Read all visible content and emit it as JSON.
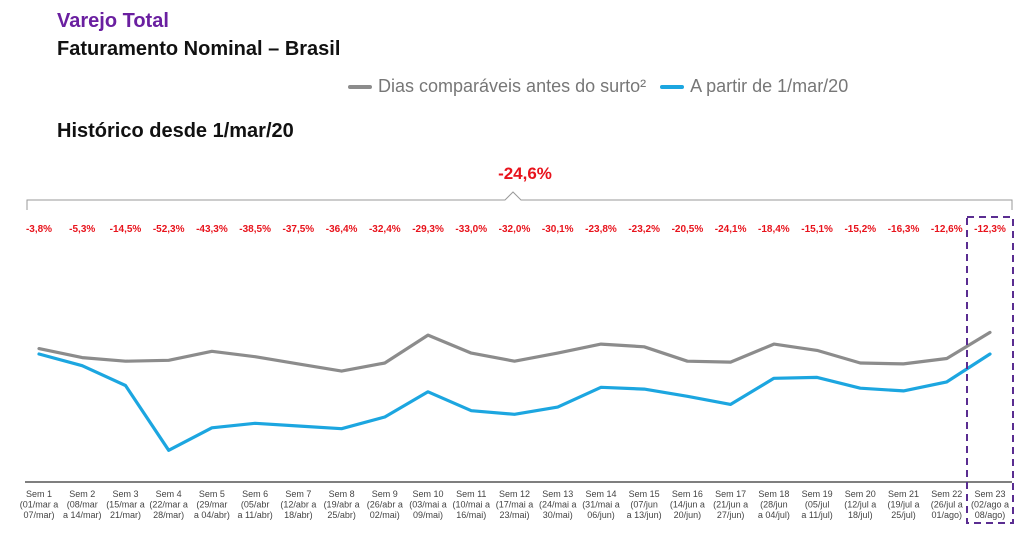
{
  "header": {
    "title": "Varejo Total",
    "subtitle": "Faturamento Nominal – Brasil",
    "section": "Histórico desde 1/mar/20"
  },
  "legend": {
    "items": [
      {
        "label": "Dias comparáveis antes do surto²",
        "color": "#8c8c8c"
      },
      {
        "label": "A partir de 1/mar/20",
        "color": "#1ca6e0"
      }
    ]
  },
  "colors": {
    "accent": "#6a1fa0",
    "negative": "#e8131c",
    "highlight_box": "#5a2d91"
  },
  "chart_data": {
    "type": "line",
    "total_change": "-24,6%",
    "categories": [
      [
        "Sem 1",
        "(01/mar a",
        "07/mar)"
      ],
      [
        "Sem 2",
        "(08/mar",
        "a 14/mar)"
      ],
      [
        "Sem 3",
        "(15/mar a",
        "21/mar)"
      ],
      [
        "Sem 4",
        "(22/mar a",
        "28/mar)"
      ],
      [
        "Sem 5",
        "(29/mar",
        "a 04/abr)"
      ],
      [
        "Sem 6",
        "(05/abr",
        "a 11/abr)"
      ],
      [
        "Sem 7",
        "(12/abr a",
        "18/abr)"
      ],
      [
        "Sem 8",
        "(19/abr a",
        "25/abr)"
      ],
      [
        "Sem 9",
        "(26/abr a",
        "02/mai)"
      ],
      [
        "Sem 10",
        "(03/mai a",
        "09/mai)"
      ],
      [
        "Sem 11",
        "(10/mai a",
        "16/mai)"
      ],
      [
        "Sem 12",
        "(17/mai a",
        "23/mai)"
      ],
      [
        "Sem 13",
        "(24/mai a",
        "30/mai)"
      ],
      [
        "Sem 14",
        "(31/mai a",
        "06/jun)"
      ],
      [
        "Sem 15",
        "(07/jun",
        "a 13/jun)"
      ],
      [
        "Sem 16",
        "(14/jun a",
        "20/jun)"
      ],
      [
        "Sem 17",
        "(21/jun a",
        "27/jun)"
      ],
      [
        "Sem 18",
        "(28/jun",
        "a 04/jul)"
      ],
      [
        "Sem 19",
        "(05/jul",
        "a 11/jul)"
      ],
      [
        "Sem 20",
        "(12/jul a",
        "18/jul)"
      ],
      [
        "Sem 21",
        "(19/jul a",
        "25/jul)"
      ],
      [
        "Sem 22",
        "(26/jul a",
        "01/ago)"
      ],
      [
        "Sem 23",
        "(02/ago a",
        "08/ago)"
      ]
    ],
    "variations": [
      "-3,8%",
      "-5,3%",
      "-14,5%",
      "-52,3%",
      "-43,3%",
      "-38,5%",
      "-37,5%",
      "-36,4%",
      "-32,4%",
      "-29,3%",
      "-33,0%",
      "-32,0%",
      "-30,1%",
      "-23,8%",
      "-23,2%",
      "-20,5%",
      "-24,1%",
      "-18,4%",
      "-15,1%",
      "-15,2%",
      "-16,3%",
      "-12,6%",
      "-12,3%"
    ],
    "ylim": [
      0,
      100
    ],
    "series": [
      {
        "name": "Dias comparáveis antes do surto²",
        "color": "#8c8c8c",
        "values": [
          73,
          68,
          66,
          66.5,
          71.5,
          68.5,
          64.5,
          60.5,
          65,
          80.5,
          70.5,
          66,
          70.5,
          75.5,
          74,
          66,
          65.5,
          75.5,
          72,
          65,
          64.5,
          67.5,
          82
        ]
      },
      {
        "name": "A partir de 1/mar/20",
        "color": "#1ca6e0",
        "values": [
          70,
          63.5,
          52.5,
          16.5,
          29,
          31.5,
          30,
          28.5,
          35,
          49,
          38.5,
          36.5,
          40.5,
          51.5,
          50.5,
          46.5,
          42,
          56.5,
          57,
          51,
          49.5,
          54.5,
          70
        ]
      }
    ],
    "highlight_category": 22
  }
}
